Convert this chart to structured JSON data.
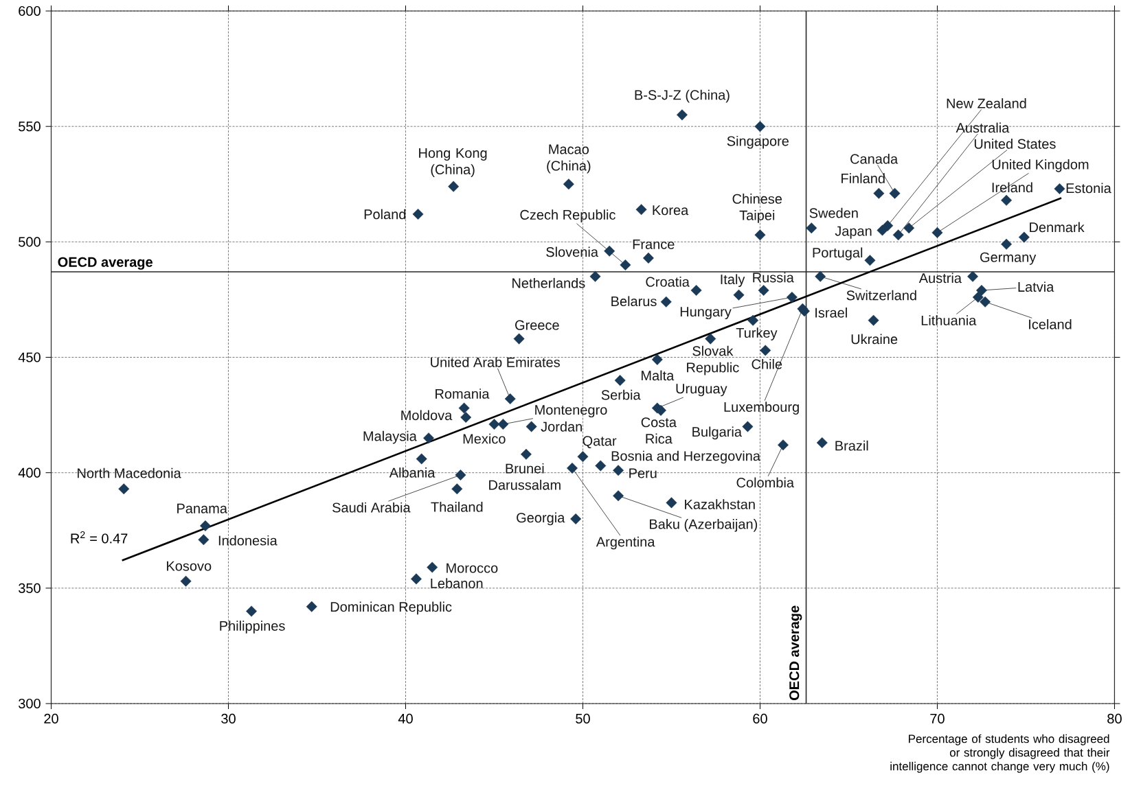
{
  "chart_data": {
    "type": "scatter",
    "xlabel": "Percentage of students who disagreed or strongly disagreed that their intelligence cannot change very much (%)",
    "xlim": [
      20,
      80
    ],
    "ylim": [
      300,
      600
    ],
    "xticks": [
      20,
      30,
      40,
      50,
      60,
      70,
      80
    ],
    "yticks": [
      300,
      350,
      400,
      450,
      500,
      550,
      600
    ],
    "grid": true,
    "series": [
      {
        "marker": "diamond",
        "color": "#1b3a57",
        "x": [
          24.1,
          28.7,
          28.6,
          27.6,
          31.3,
          34.7,
          41.5,
          40.6,
          41.3,
          40.9,
          43.1,
          42.9,
          43.3,
          43.4,
          45.0,
          45.5,
          47.1,
          45.9,
          46.4,
          46.8,
          50.0,
          49.4,
          49.6,
          51.0,
          52.0,
          52.0,
          55.0,
          52.1,
          54.2,
          54.2,
          54.4,
          59.3,
          61.3,
          63.5,
          57.2,
          60.3,
          59.6,
          54.7,
          56.4,
          58.8,
          60.2,
          61.8,
          62.4,
          62.5,
          63.4,
          50.7,
          51.5,
          52.4,
          53.7,
          40.7,
          42.7,
          49.2,
          53.3,
          55.6,
          60.0,
          60.0,
          62.9,
          66.2,
          66.7,
          67.6,
          66.9,
          67.2,
          67.8,
          68.4,
          70.0,
          73.9,
          76.9,
          74.9,
          73.9,
          72.0,
          72.5,
          72.3,
          72.7,
          66.4
        ],
        "values": [
          393,
          377,
          371,
          353,
          340,
          342,
          359,
          354,
          415,
          406,
          399,
          393,
          428,
          424,
          421,
          421,
          420,
          432,
          458,
          408,
          407,
          402,
          380,
          403,
          401,
          390,
          387,
          440,
          449,
          428,
          427,
          420,
          412,
          413,
          458,
          453,
          466,
          474,
          479,
          477,
          479,
          476,
          471,
          470,
          485,
          485,
          496,
          490,
          493,
          512,
          524,
          525,
          514,
          555,
          550,
          503,
          506,
          492,
          521,
          521,
          505,
          507,
          503,
          506,
          504,
          518,
          523,
          502,
          499,
          485,
          479,
          476,
          474,
          466
        ]
      },
      {
        "type": "line",
        "color": "#000000",
        "x": [
          24,
          77
        ],
        "values": [
          362,
          519
        ]
      }
    ],
    "ref_lines": [
      {
        "axis": "y",
        "value": 487,
        "label": "OECD average"
      },
      {
        "axis": "x",
        "value": 62.6,
        "label": "OECD average"
      }
    ],
    "annotations": [
      "R$^{2}$ = 0.47",
      {
        "text": "North Macedonia",
        "x": 24.1,
        "y": 393
      },
      {
        "text": "Panama",
        "x": 28.7,
        "y": 377
      },
      {
        "text": "Indonesia",
        "x": 28.6,
        "y": 371
      },
      {
        "text": "Kosovo",
        "x": 27.6,
        "y": 353
      },
      {
        "text": "Philippines",
        "x": 31.3,
        "y": 340
      },
      {
        "text": "Dominican Republic",
        "x": 34.7,
        "y": 342
      },
      {
        "text": "Morocco",
        "x": 41.5,
        "y": 359
      },
      {
        "text": "Lebanon",
        "x": 40.6,
        "y": 354
      },
      {
        "text": "Malaysia",
        "x": 41.3,
        "y": 415
      },
      {
        "text": "Albania",
        "x": 40.9,
        "y": 406
      },
      {
        "text": "Saudi Arabia",
        "x": 43.1,
        "y": 399
      },
      {
        "text": "Thailand",
        "x": 42.9,
        "y": 393
      },
      {
        "text": "Romania",
        "x": 43.3,
        "y": 428
      },
      {
        "text": "Moldova",
        "x": 43.4,
        "y": 424
      },
      {
        "text": "Mexico",
        "x": 45.0,
        "y": 421
      },
      {
        "text": "Montenegro",
        "x": 45.5,
        "y": 421
      },
      {
        "text": "Jordan",
        "x": 47.1,
        "y": 420
      },
      {
        "text": "United Arab Emirates",
        "x": 45.9,
        "y": 432
      },
      {
        "text": "Greece",
        "x": 46.4,
        "y": 458
      },
      {
        "text": "Brunei Darussalam",
        "x": 46.8,
        "y": 408
      },
      {
        "text": "Qatar",
        "x": 50.0,
        "y": 407
      },
      {
        "text": "Argentina",
        "x": 49.4,
        "y": 402
      },
      {
        "text": "Georgia",
        "x": 49.6,
        "y": 380
      },
      {
        "text": "Bosnia and Herzegovina",
        "x": 51.0,
        "y": 403
      },
      {
        "text": "Peru",
        "x": 52.0,
        "y": 401
      },
      {
        "text": "Baku (Azerbaijan)",
        "x": 52.0,
        "y": 390
      },
      {
        "text": "Kazakhstan",
        "x": 55.0,
        "y": 387
      },
      {
        "text": "Serbia",
        "x": 52.1,
        "y": 440
      },
      {
        "text": "Malta",
        "x": 54.2,
        "y": 449
      },
      {
        "text": "Uruguay",
        "x": 54.2,
        "y": 428
      },
      {
        "text": "Costa Rica",
        "x": 54.4,
        "y": 427
      },
      {
        "text": "Bulgaria",
        "x": 59.3,
        "y": 420
      },
      {
        "text": "Colombia",
        "x": 61.3,
        "y": 412
      },
      {
        "text": "Brazil",
        "x": 63.5,
        "y": 413
      },
      {
        "text": "Slovak Republic",
        "x": 57.2,
        "y": 458
      },
      {
        "text": "Chile",
        "x": 60.3,
        "y": 453
      },
      {
        "text": "Turkey",
        "x": 59.6,
        "y": 466
      },
      {
        "text": "Belarus",
        "x": 54.7,
        "y": 474
      },
      {
        "text": "Croatia",
        "x": 56.4,
        "y": 479
      },
      {
        "text": "Italy",
        "x": 58.8,
        "y": 477
      },
      {
        "text": "Russia",
        "x": 60.2,
        "y": 479
      },
      {
        "text": "Hungary",
        "x": 61.8,
        "y": 476
      },
      {
        "text": "Luxembourg",
        "x": 62.4,
        "y": 471
      },
      {
        "text": "Israel",
        "x": 62.5,
        "y": 470
      },
      {
        "text": "Switzerland",
        "x": 63.4,
        "y": 485
      },
      {
        "text": "Netherlands",
        "x": 50.7,
        "y": 485
      },
      {
        "text": "Slovenia",
        "x": 51.5,
        "y": 496
      },
      {
        "text": "Czech Republic",
        "x": 52.4,
        "y": 490
      },
      {
        "text": "France",
        "x": 53.7,
        "y": 493
      },
      {
        "text": "Poland",
        "x": 40.7,
        "y": 512
      },
      {
        "text": "Hong Kong (China)",
        "x": 42.7,
        "y": 524
      },
      {
        "text": "Macao (China)",
        "x": 49.2,
        "y": 525
      },
      {
        "text": "Korea",
        "x": 53.3,
        "y": 514
      },
      {
        "text": "B-S-J-Z (China)",
        "x": 55.6,
        "y": 555
      },
      {
        "text": "Singapore",
        "x": 60.0,
        "y": 550
      },
      {
        "text": "Chinese Taipei",
        "x": 60.0,
        "y": 503
      },
      {
        "text": "Sweden",
        "x": 62.9,
        "y": 506
      },
      {
        "text": "Portugal",
        "x": 66.2,
        "y": 492
      },
      {
        "text": "Finland",
        "x": 66.7,
        "y": 521
      },
      {
        "text": "Canada",
        "x": 67.6,
        "y": 521
      },
      {
        "text": "Japan",
        "x": 66.9,
        "y": 505
      },
      {
        "text": "New Zealand",
        "x": 67.2,
        "y": 507
      },
      {
        "text": "Australia",
        "x": 67.8,
        "y": 503
      },
      {
        "text": "United States",
        "x": 68.4,
        "y": 506
      },
      {
        "text": "United Kingdom",
        "x": 70.0,
        "y": 504
      },
      {
        "text": "Ireland",
        "x": 73.9,
        "y": 518
      },
      {
        "text": "Estonia",
        "x": 76.9,
        "y": 523
      },
      {
        "text": "Denmark",
        "x": 74.9,
        "y": 502
      },
      {
        "text": "Germany",
        "x": 73.9,
        "y": 499
      },
      {
        "text": "Austria",
        "x": 72.0,
        "y": 485
      },
      {
        "text": "Latvia",
        "x": 72.5,
        "y": 479
      },
      {
        "text": "Lithuania",
        "x": 72.3,
        "y": 476
      },
      {
        "text": "Iceland",
        "x": 72.7,
        "y": 474
      },
      {
        "text": "Ukraine",
        "x": 66.4,
        "y": 466
      }
    ]
  }
}
